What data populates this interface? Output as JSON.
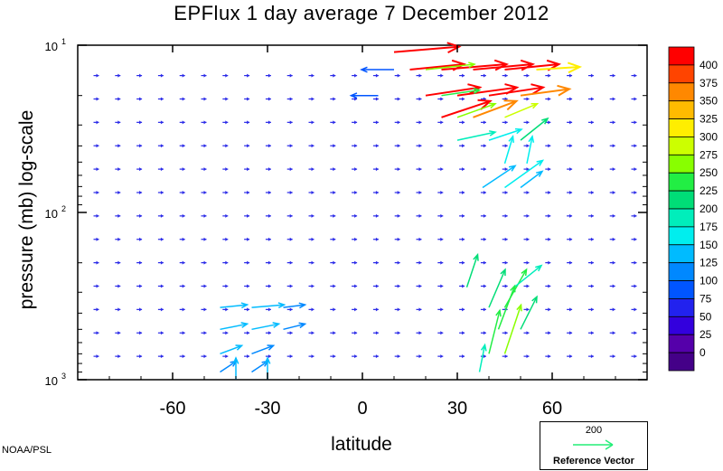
{
  "title": "EPFlux  1 day average  7 December  2012",
  "credit": "NOAA/PSL",
  "reference_vector": {
    "value": "200",
    "label": "Reference Vector",
    "color": "#22ee77"
  },
  "chart_data": {
    "type": "vector-field",
    "title": "EPFlux  1 day average  7 December  2012",
    "xlabel": "latitude",
    "ylabel": "pressure (mb)  log-scale",
    "x_ticks": [
      -60,
      -30,
      0,
      30,
      60
    ],
    "xlim": [
      -90,
      90
    ],
    "y_scale": "log",
    "ylim": [
      1000,
      10
    ],
    "y_tick_labels": [
      {
        "base": "10",
        "exp": "1",
        "value": 10
      },
      {
        "base": "10",
        "exp": "2",
        "value": 100
      },
      {
        "base": "10",
        "exp": "3",
        "value": 1000
      }
    ],
    "colorbar": {
      "levels": [
        400,
        375,
        350,
        325,
        300,
        275,
        250,
        225,
        200,
        175,
        150,
        125,
        100,
        75,
        50,
        25,
        0
      ],
      "colors": [
        "#ff0000",
        "#ff4400",
        "#ff8800",
        "#ffbb00",
        "#ffee00",
        "#ccff00",
        "#88ff00",
        "#22ee44",
        "#00dd77",
        "#00eebb",
        "#00eeee",
        "#00bbff",
        "#0088ff",
        "#0055ff",
        "#2222ee",
        "#3300dd",
        "#5500aa",
        "#440088"
      ]
    },
    "vectors": [
      {
        "lat": 10,
        "p": 11,
        "u": 1.2,
        "v": 0.1,
        "mag": 400
      },
      {
        "lat": 15,
        "p": 14,
        "u": 1.0,
        "v": 0.1,
        "mag": 400
      },
      {
        "lat": 25,
        "p": 14,
        "u": 1.2,
        "v": 0.1,
        "mag": 400
      },
      {
        "lat": 35,
        "p": 14,
        "u": 1.1,
        "v": 0.1,
        "mag": 400
      },
      {
        "lat": 45,
        "p": 14,
        "u": 1.0,
        "v": 0.1,
        "mag": 400
      },
      {
        "lat": 55,
        "p": 14,
        "u": 0.8,
        "v": 0.05,
        "mag": 300
      },
      {
        "lat": 20,
        "p": 14,
        "u": 0.9,
        "v": 0.1,
        "mag": 250
      },
      {
        "lat": 20,
        "p": 20,
        "u": 1.0,
        "v": 0.15,
        "mag": 400
      },
      {
        "lat": 30,
        "p": 20,
        "u": 1.1,
        "v": 0.15,
        "mag": 400
      },
      {
        "lat": 40,
        "p": 20,
        "u": 1.0,
        "v": 0.15,
        "mag": 400
      },
      {
        "lat": 50,
        "p": 20,
        "u": 0.9,
        "v": 0.12,
        "mag": 350
      },
      {
        "lat": 25,
        "p": 20,
        "u": 0.7,
        "v": 0.1,
        "mag": 225
      },
      {
        "lat": 25,
        "p": 27,
        "u": 0.9,
        "v": 0.3,
        "mag": 400
      },
      {
        "lat": 35,
        "p": 27,
        "u": 0.8,
        "v": 0.3,
        "mag": 350
      },
      {
        "lat": 45,
        "p": 27,
        "u": 0.6,
        "v": 0.25,
        "mag": 275
      },
      {
        "lat": 30,
        "p": 27,
        "u": 0.7,
        "v": 0.25,
        "mag": 250
      },
      {
        "lat": 30,
        "p": 37,
        "u": 0.7,
        "v": 0.15,
        "mag": 175
      },
      {
        "lat": 40,
        "p": 37,
        "u": 0.6,
        "v": 0.2,
        "mag": 150
      },
      {
        "lat": 50,
        "p": 37,
        "u": 0.5,
        "v": 0.4,
        "mag": 200
      },
      {
        "lat": 45,
        "p": 51,
        "u": 0.15,
        "v": 0.5,
        "mag": 150
      },
      {
        "lat": 52,
        "p": 51,
        "u": 0.1,
        "v": 0.5,
        "mag": 150
      },
      {
        "lat": 38,
        "p": 71,
        "u": 0.6,
        "v": 0.4,
        "mag": 125
      },
      {
        "lat": 45,
        "p": 71,
        "u": 0.7,
        "v": 0.5,
        "mag": 150
      },
      {
        "lat": 50,
        "p": 71,
        "u": 0.4,
        "v": 0.3,
        "mag": 125
      },
      {
        "lat": 10,
        "p": 14,
        "u": -0.6,
        "v": 0.0,
        "mag": 90
      },
      {
        "lat": 5,
        "p": 20,
        "u": -0.5,
        "v": 0.0,
        "mag": 90
      },
      {
        "lat": 33,
        "p": 280,
        "u": 0.2,
        "v": 0.6,
        "mag": 200
      },
      {
        "lat": 40,
        "p": 370,
        "u": 0.3,
        "v": 0.7,
        "mag": 200
      },
      {
        "lat": 45,
        "p": 370,
        "u": 0.4,
        "v": 0.7,
        "mag": 225
      },
      {
        "lat": 48,
        "p": 280,
        "u": 0.5,
        "v": 0.4,
        "mag": 175
      },
      {
        "lat": 43,
        "p": 500,
        "u": 0.3,
        "v": 0.8,
        "mag": 225
      },
      {
        "lat": 40,
        "p": 700,
        "u": 0.2,
        "v": 0.8,
        "mag": 225
      },
      {
        "lat": 45,
        "p": 700,
        "u": 0.3,
        "v": 0.9,
        "mag": 250
      },
      {
        "lat": 50,
        "p": 500,
        "u": 0.3,
        "v": 0.6,
        "mag": 200
      },
      {
        "lat": 37,
        "p": 900,
        "u": 0.1,
        "v": 0.5,
        "mag": 175
      },
      {
        "lat": -45,
        "p": 370,
        "u": 0.5,
        "v": 0.05,
        "mag": 125
      },
      {
        "lat": -35,
        "p": 370,
        "u": 0.6,
        "v": 0.05,
        "mag": 125
      },
      {
        "lat": -25,
        "p": 370,
        "u": 0.4,
        "v": 0.05,
        "mag": 100
      },
      {
        "lat": -45,
        "p": 500,
        "u": 0.5,
        "v": 0.1,
        "mag": 125
      },
      {
        "lat": -35,
        "p": 500,
        "u": 0.5,
        "v": 0.1,
        "mag": 125
      },
      {
        "lat": -25,
        "p": 500,
        "u": 0.4,
        "v": 0.1,
        "mag": 100
      },
      {
        "lat": -45,
        "p": 700,
        "u": 0.4,
        "v": 0.15,
        "mag": 125
      },
      {
        "lat": -35,
        "p": 700,
        "u": 0.4,
        "v": 0.15,
        "mag": 100
      },
      {
        "lat": -45,
        "p": 900,
        "u": 0.3,
        "v": 0.2,
        "mag": 100
      },
      {
        "lat": -35,
        "p": 900,
        "u": 0.3,
        "v": 0.2,
        "mag": 100
      },
      {
        "lat": -40,
        "p": 1000,
        "u": 0.0,
        "v": 0.4,
        "mag": 125
      },
      {
        "lat": -30,
        "p": 1000,
        "u": 0.0,
        "v": 0.4,
        "mag": 125
      }
    ]
  }
}
